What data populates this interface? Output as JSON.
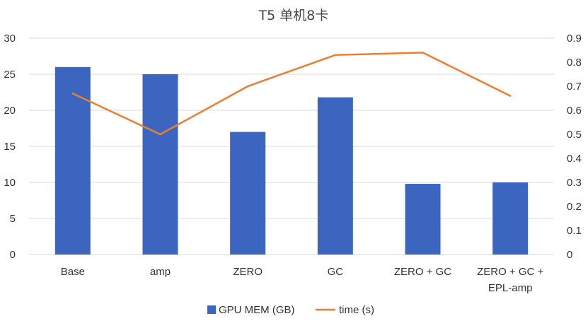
{
  "chart_data": {
    "type": "bar",
    "title": "T5 单机8卡",
    "categories": [
      [
        "Base"
      ],
      [
        "amp"
      ],
      [
        "ZERO"
      ],
      [
        "GC"
      ],
      [
        "ZERO + GC"
      ],
      [
        "ZERO + GC +",
        "EPL-amp"
      ]
    ],
    "series": [
      {
        "name": "GPU MEM (GB)",
        "kind": "bar",
        "axis": "left",
        "color": "#3b65be",
        "values": [
          26,
          25,
          17,
          21.8,
          9.8,
          10
        ]
      },
      {
        "name": "time (s)",
        "kind": "line",
        "axis": "right",
        "color": "#ed7d31",
        "values": [
          0.67,
          0.5,
          0.7,
          0.83,
          0.84,
          0.66
        ]
      }
    ],
    "y_left": {
      "min": 0,
      "max": 30,
      "ticks": [
        "0",
        "5",
        "10",
        "15",
        "20",
        "25",
        "30"
      ]
    },
    "y_right": {
      "min": 0,
      "max": 0.9,
      "ticks": [
        "0",
        "0.1",
        "0.2",
        "0.3",
        "0.4",
        "0.5",
        "0.6",
        "0.7",
        "0.8",
        "0.9"
      ]
    },
    "grid": true,
    "legend": "bottom"
  }
}
